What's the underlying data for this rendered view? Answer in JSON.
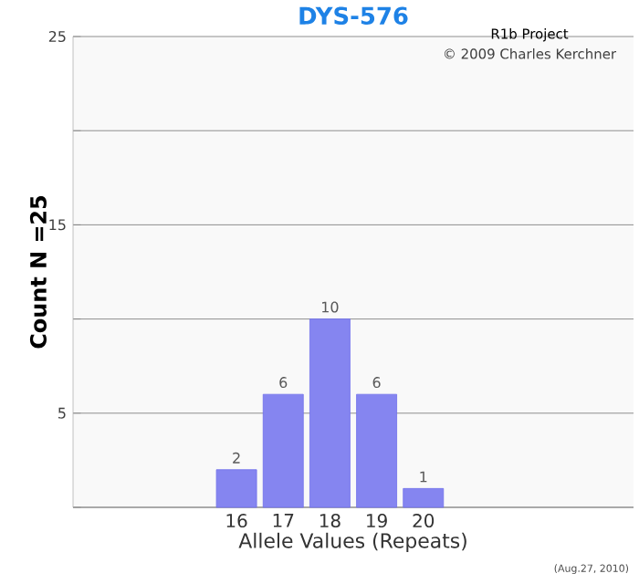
{
  "chart_data": {
    "type": "bar",
    "title": "DYS-576",
    "xlabel": "Allele Values (Repeats)",
    "ylabel": "Count N =25",
    "categories": [
      null,
      null,
      null,
      "16",
      "17",
      "18",
      "19",
      "20",
      null,
      null,
      null,
      null
    ],
    "values": [
      null,
      null,
      null,
      2,
      6,
      10,
      6,
      1,
      null,
      null,
      null,
      null
    ],
    "color": "#8585f0",
    "data_labels": true,
    "ylim": [
      0,
      25
    ],
    "yticks": [
      {
        "value": 0,
        "label": null
      },
      5,
      {
        "value": 10,
        "label": null
      },
      15,
      {
        "value": 20,
        "label": null
      },
      25
    ],
    "grid": "y",
    "annotations": [
      "R1b Project",
      "© 2009 Charles Kerchner",
      "(Aug.27, 2010)"
    ]
  }
}
